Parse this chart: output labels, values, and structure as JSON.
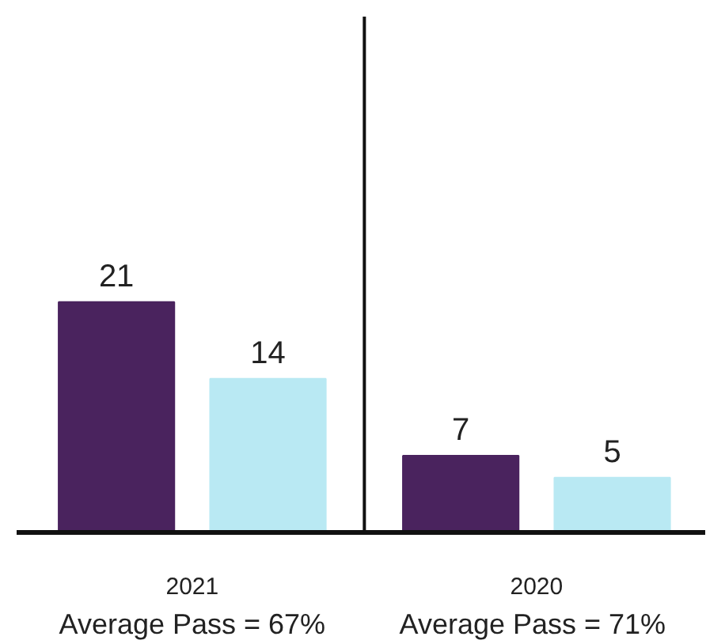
{
  "chart_data": {
    "type": "bar",
    "categories": [
      "2021",
      "2020"
    ],
    "series": [
      {
        "color": "#4a235e",
        "values": [
          21,
          7
        ]
      },
      {
        "color": "#b9e9f3",
        "values": [
          14,
          5
        ]
      }
    ],
    "data_labels": true,
    "ylim": [
      0,
      47
    ],
    "tick_labels": "x",
    "grid": false,
    "annotations": [
      "Average Pass = 67%",
      "Average Pass =  71%"
    ]
  }
}
